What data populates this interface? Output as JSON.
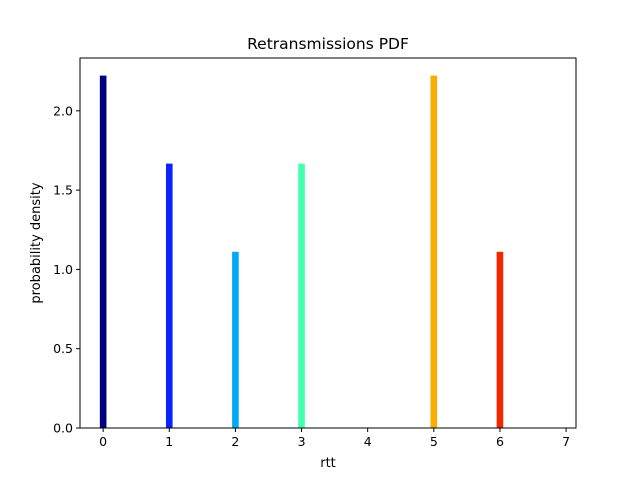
{
  "chart_data": {
    "type": "bar",
    "title": "Retransmissions PDF",
    "xlabel": "rtt",
    "ylabel": "probability density",
    "x": [
      0,
      1,
      2,
      3,
      5,
      6
    ],
    "values": [
      2.222,
      1.667,
      1.111,
      1.667,
      2.222,
      1.111
    ],
    "colors": [
      "#00007f",
      "#0a23ff",
      "#00aaf8",
      "#43ffb0",
      "#f8ad00",
      "#f22700"
    ],
    "bar_width": 0.1,
    "xlim": [
      -0.35,
      7.15
    ],
    "ylim": [
      0,
      2.333
    ],
    "xticks": [
      0,
      1,
      2,
      3,
      4,
      5,
      6,
      7
    ],
    "yticks": [
      0.0,
      0.5,
      1.0,
      1.5,
      2.0
    ],
    "ytick_labels": [
      "0.0",
      "0.5",
      "1.0",
      "1.5",
      "2.0"
    ],
    "grid": false,
    "legend": "none"
  }
}
